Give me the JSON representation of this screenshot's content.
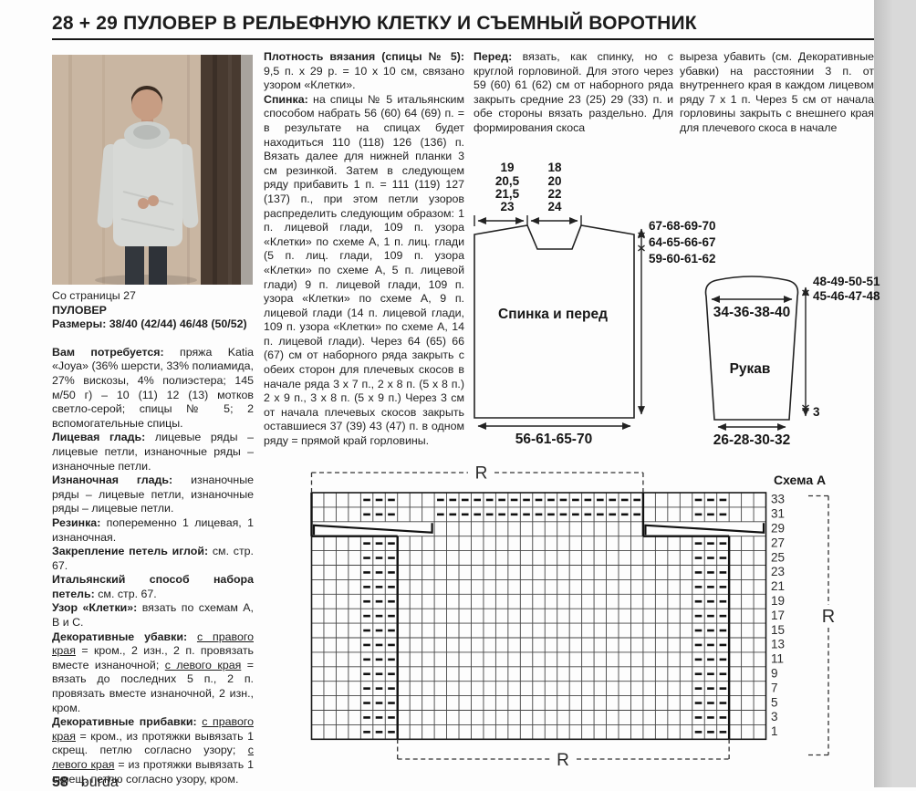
{
  "header": {
    "title": "28 + 29 ПУЛОВЕР В РЕЛЬЕФНУЮ КЛЕТКУ И СЪЕМНЫЙ ВОРОТНИК"
  },
  "footer": {
    "page_number": "58",
    "magazine": "burda"
  },
  "photo": {
    "description": "model wearing light grey cowl-neck pullover"
  },
  "columns": {
    "col1": [
      {
        "runs": [
          {
            "s": "r",
            "t": "Со страницы 27"
          }
        ]
      },
      {
        "runs": [
          {
            "s": "b",
            "t": "ПУЛОВЕР"
          }
        ]
      },
      {
        "runs": [
          {
            "s": "b",
            "t": "Размеры: 38/40 (42/44) 46/48 (50/52)"
          }
        ]
      },
      {
        "gap": true,
        "runs": [
          {
            "s": "b",
            "t": "Вам потребуется:"
          },
          {
            "s": "r",
            "t": " пряжа Katia «Joya» (36% шерсти, 33% полиамида, 27% вискозы, 4% полиэстера; 145 м/50 г) – 10 (11) 12 (13) мотков светло-серой; спицы № 5; 2 вспомогательные спицы."
          }
        ]
      },
      {
        "runs": [
          {
            "s": "b",
            "t": "Лицевая гладь:"
          },
          {
            "s": "r",
            "t": " лицевые ряды – лицевые петли, изнаночные ряды – изнаночные петли."
          }
        ]
      },
      {
        "runs": [
          {
            "s": "b",
            "t": "Изнаночная гладь:"
          },
          {
            "s": "r",
            "t": " изнаночные ряды – лицевые петли, изнаночные ряды – лицевые петли."
          }
        ]
      },
      {
        "runs": [
          {
            "s": "b",
            "t": "Резинка:"
          },
          {
            "s": "r",
            "t": " попеременно 1 лицевая, 1 изнаночная."
          }
        ]
      },
      {
        "runs": [
          {
            "s": "b",
            "t": "Закрепление петель иглой:"
          },
          {
            "s": "r",
            "t": " см. стр. 67."
          }
        ]
      },
      {
        "runs": [
          {
            "s": "b",
            "t": "Итальянский способ набора петель:"
          },
          {
            "s": "r",
            "t": " см. стр. 67."
          }
        ]
      },
      {
        "runs": [
          {
            "s": "b",
            "t": "Узор «Клетки»:"
          },
          {
            "s": "r",
            "t": " вязать по схемам А, В и С."
          }
        ]
      },
      {
        "runs": [
          {
            "s": "b",
            "t": "Декоративные убавки:"
          },
          {
            "s": "r",
            "t": " "
          },
          {
            "s": "u",
            "t": "с правого края"
          },
          {
            "s": "r",
            "t": " = кром., 2 изн., 2 п. провязать вместе изнаночной; "
          },
          {
            "s": "u",
            "t": "с левого края"
          },
          {
            "s": "r",
            "t": " = вязать до последних 5 п., 2 п. провязать вместе изнаночной, 2 изн., кром."
          }
        ]
      },
      {
        "runs": [
          {
            "s": "b",
            "t": "Декоративные прибавки:"
          },
          {
            "s": "r",
            "t": " "
          },
          {
            "s": "u",
            "t": "с правого края"
          },
          {
            "s": "r",
            "t": " = кром., из протяжки вывязать 1 скрещ. петлю согласно узору; "
          },
          {
            "s": "u",
            "t": "с левого края"
          },
          {
            "s": "r",
            "t": " = из протяжки вывязать 1 скрещ. петлю согласно узору, кром."
          }
        ]
      }
    ],
    "col2": [
      {
        "runs": [
          {
            "s": "b",
            "t": "Плотность вязания (спицы № 5):"
          },
          {
            "s": "r",
            "t": " 9,5 п. х 29 р. = 10 х 10 см, связано узором «Клетки»."
          }
        ]
      },
      {
        "runs": [
          {
            "s": "b",
            "t": "Спинка:"
          },
          {
            "s": "r",
            "t": " на спицы № 5 итальянским способом набрать 56 (60) 64 (69) п. = в результате на спицах будет находиться 110 (118) 126 (136) п. Вязать далее для нижней планки 3 см резинкой. Затем в следующем ряду прибавить 1 п. = 111 (119) 127 (137) п., при этом петли узоров распределить следующим образом: 1 п. лицевой глади, 109 п. узора «Клетки» по схеме А, 1 п. лиц. глади (5 п. лиц. глади, 109 п. узора «Клетки» по схеме А, 5 п. лицевой глади) 9 п. лицевой глади, 109 п. узора «Клетки» по схеме А, 9 п. лицевой глади (14 п. лицевой глади, 109 п. узора «Клетки» по схеме А, 14 п. лицевой глади). Через 64 (65) 66 (67) см от наборного ряда закрыть с обеих сторон для плечевых скосов в начале ряда 3 х 7 п., 2 х 8 п. (5 х 8 п.) 2 х 9 п., 3 х 8 п. (5 х 9 п.) Через 3 см от начала плечевых скосов закрыть оставшиеся 37 (39) 43 (47) п. в одном ряду = прямой край горловины."
          }
        ]
      }
    ],
    "col3": [
      {
        "runs": [
          {
            "s": "b",
            "t": "Перед:"
          },
          {
            "s": "r",
            "t": " вязать, как спинку, но с круглой горловиной. Для этого через 59 (60) 61 (62) см от наборного ряда закрыть средние 23 (25) 29 (33) п. и обе стороны вязать раздельно. Для формирования скоса"
          }
        ]
      }
    ],
    "col4": [
      {
        "runs": [
          {
            "s": "r",
            "t": "выреза убавить (см. Декоративные убавки) на расстоянии 3 п. от внутреннего края в каждом лицевом ряду 7 х 1 п. Через 5 см от начала горловины закрыть с внешнего края для плечевого скоса в начале"
          }
        ]
      }
    ]
  },
  "diagrams": {
    "back_front": {
      "label": "Спинка и перед",
      "top_left": [
        "19",
        "20,5",
        "21,5",
        "23"
      ],
      "top_right": [
        "18",
        "20",
        "22",
        "24"
      ],
      "right": [
        "67-68-69-70",
        "64-65-66-67",
        "59-60-61-62"
      ],
      "bottom": "56-61-65-70"
    },
    "sleeve": {
      "label": "Рукав",
      "top": "34-36-38-40",
      "right": [
        "48-49-50-51",
        "45-46-47-48"
      ],
      "cuff": "3",
      "bottom": "26-28-30-32"
    }
  },
  "chart_data": {
    "type": "table",
    "title": "Схема A",
    "repeat_letter": "R",
    "grid": {
      "cols": 37,
      "rows": 17
    },
    "row_labels": [
      "33",
      "31",
      "29",
      "27",
      "25",
      "23",
      "21",
      "19",
      "17",
      "15",
      "13",
      "11",
      "9",
      "7",
      "5",
      "3",
      "1"
    ],
    "purl_symbol": "—",
    "purl_bands": {
      "left_cols": [
        5,
        7
      ],
      "right_cols": [
        32,
        34
      ],
      "top_band_cols": [
        11,
        27
      ],
      "top_band_row_indexes": [
        0,
        1
      ],
      "skipped_row_index": 2
    },
    "cable_row": {
      "label": "29",
      "row_index": 2,
      "spans_cols": [
        [
          1,
          10
        ],
        [
          28,
          37
        ]
      ]
    },
    "repeats": {
      "top_R_cols": [
        1,
        27
      ],
      "bottom_R_cols": [
        8,
        34
      ],
      "right_R_rows": [
        1,
        33
      ]
    }
  }
}
